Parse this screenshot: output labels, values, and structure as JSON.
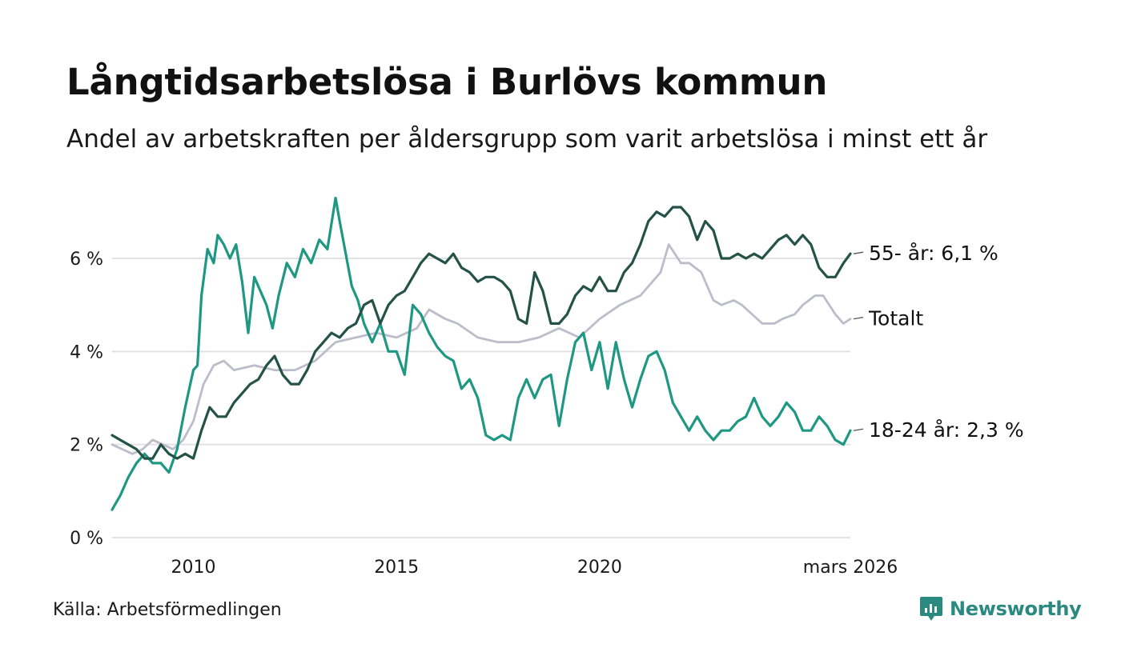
{
  "header": {
    "title": "Långtidsarbetslösa i Burlövs kommun",
    "subtitle": "Andel av arbetskraften per åldersgrupp som varit arbetslösa i minst ett år"
  },
  "footer": {
    "source": "Källa: Arbetsförmedlingen",
    "brand": "Newsworthy"
  },
  "chart_data": {
    "type": "line",
    "title": "Långtidsarbetslösa i Burlövs kommun",
    "ylabel": "",
    "xlabel": "",
    "ylim": [
      0,
      7.5
    ],
    "xlim": [
      2008.0,
      2026.17
    ],
    "grid": true,
    "y_ticks": [
      {
        "value": 0,
        "label": "0 %"
      },
      {
        "value": 2,
        "label": "2 %"
      },
      {
        "value": 4,
        "label": "4 %"
      },
      {
        "value": 6,
        "label": "6 %"
      }
    ],
    "x_ticks": [
      {
        "value": 2010,
        "label": "2010"
      },
      {
        "value": 2015,
        "label": "2015"
      },
      {
        "value": 2020,
        "label": "2020"
      },
      {
        "value": 2026.17,
        "label": "mars 2026"
      }
    ],
    "series": [
      {
        "name": "Totalt",
        "end_label": "Totalt",
        "color": "#bdbccb",
        "width": 2.8,
        "x": [
          2008.0,
          2008.25,
          2008.5,
          2008.75,
          2009.0,
          2009.25,
          2009.5,
          2009.75,
          2010.0,
          2010.25,
          2010.5,
          2010.75,
          2011.0,
          2011.5,
          2012.0,
          2012.5,
          2013.0,
          2013.5,
          2014.0,
          2014.5,
          2015.0,
          2015.5,
          2015.8,
          2016.2,
          2016.5,
          2017.0,
          2017.5,
          2018.0,
          2018.5,
          2019.0,
          2019.5,
          2020.0,
          2020.5,
          2021.0,
          2021.3,
          2021.5,
          2021.7,
          2022.0,
          2022.2,
          2022.5,
          2022.8,
          2023.0,
          2023.3,
          2023.5,
          2024.0,
          2024.3,
          2024.5,
          2024.8,
          2025.0,
          2025.3,
          2025.5,
          2025.8,
          2026.0,
          2026.17
        ],
        "values": [
          2.0,
          1.9,
          1.8,
          1.9,
          2.1,
          2.0,
          1.9,
          2.1,
          2.5,
          3.3,
          3.7,
          3.8,
          3.6,
          3.7,
          3.6,
          3.6,
          3.8,
          4.2,
          4.3,
          4.4,
          4.3,
          4.5,
          4.9,
          4.7,
          4.6,
          4.3,
          4.2,
          4.2,
          4.3,
          4.5,
          4.3,
          4.7,
          5.0,
          5.2,
          5.5,
          5.7,
          6.3,
          5.9,
          5.9,
          5.7,
          5.1,
          5.0,
          5.1,
          5.0,
          4.6,
          4.6,
          4.7,
          4.8,
          5.0,
          5.2,
          5.2,
          4.8,
          4.6,
          4.7
        ],
        "end_value": 4.7
      },
      {
        "name": "18-24 år",
        "end_label": "18-24 år: 2,3 %",
        "color": "#1e9882",
        "width": 3.2,
        "x": [
          2008.0,
          2008.2,
          2008.4,
          2008.6,
          2008.8,
          2009.0,
          2009.2,
          2009.4,
          2009.6,
          2009.8,
          2010.0,
          2010.1,
          2010.2,
          2010.35,
          2010.5,
          2010.6,
          2010.75,
          2010.9,
          2011.05,
          2011.2,
          2011.35,
          2011.5,
          2011.65,
          2011.8,
          2011.95,
          2012.1,
          2012.3,
          2012.5,
          2012.7,
          2012.9,
          2013.1,
          2013.3,
          2013.5,
          2013.6,
          2013.75,
          2013.9,
          2014.05,
          2014.2,
          2014.4,
          2014.6,
          2014.8,
          2015.0,
          2015.2,
          2015.4,
          2015.6,
          2015.8,
          2016.0,
          2016.2,
          2016.4,
          2016.6,
          2016.8,
          2017.0,
          2017.2,
          2017.4,
          2017.6,
          2017.8,
          2018.0,
          2018.2,
          2018.4,
          2018.6,
          2018.8,
          2019.0,
          2019.2,
          2019.4,
          2019.6,
          2019.8,
          2020.0,
          2020.2,
          2020.4,
          2020.6,
          2020.8,
          2021.0,
          2021.2,
          2021.4,
          2021.6,
          2021.8,
          2022.0,
          2022.2,
          2022.4,
          2022.6,
          2022.8,
          2023.0,
          2023.2,
          2023.4,
          2023.6,
          2023.8,
          2024.0,
          2024.2,
          2024.4,
          2024.6,
          2024.8,
          2025.0,
          2025.2,
          2025.4,
          2025.6,
          2025.8,
          2026.0,
          2026.17
        ],
        "values": [
          0.6,
          0.9,
          1.3,
          1.6,
          1.8,
          1.6,
          1.6,
          1.4,
          1.9,
          2.8,
          3.6,
          3.7,
          5.2,
          6.2,
          5.9,
          6.5,
          6.3,
          6.0,
          6.3,
          5.5,
          4.4,
          5.6,
          5.3,
          5.0,
          4.5,
          5.2,
          5.9,
          5.6,
          6.2,
          5.9,
          6.4,
          6.2,
          7.3,
          6.8,
          6.1,
          5.4,
          5.1,
          4.6,
          4.2,
          4.6,
          4.0,
          4.0,
          3.5,
          5.0,
          4.8,
          4.4,
          4.1,
          3.9,
          3.8,
          3.2,
          3.4,
          3.0,
          2.2,
          2.1,
          2.2,
          2.1,
          3.0,
          3.4,
          3.0,
          3.4,
          3.5,
          2.4,
          3.4,
          4.2,
          4.4,
          3.6,
          4.2,
          3.2,
          4.2,
          3.4,
          2.8,
          3.4,
          3.9,
          4.0,
          3.6,
          2.9,
          2.6,
          2.3,
          2.6,
          2.3,
          2.1,
          2.3,
          2.3,
          2.5,
          2.6,
          3.0,
          2.6,
          2.4,
          2.6,
          2.9,
          2.7,
          2.3,
          2.3,
          2.6,
          2.4,
          2.1,
          2.0,
          2.3
        ],
        "end_value": 2.3
      },
      {
        "name": "55- år",
        "end_label": "55- år: 6,1 %",
        "color": "#245245",
        "width": 3.2,
        "x": [
          2008.0,
          2008.2,
          2008.4,
          2008.6,
          2008.8,
          2009.0,
          2009.2,
          2009.4,
          2009.6,
          2009.8,
          2010.0,
          2010.2,
          2010.4,
          2010.6,
          2010.8,
          2011.0,
          2011.2,
          2011.4,
          2011.6,
          2011.8,
          2012.0,
          2012.2,
          2012.4,
          2012.6,
          2012.8,
          2013.0,
          2013.2,
          2013.4,
          2013.6,
          2013.8,
          2014.0,
          2014.2,
          2014.4,
          2014.6,
          2014.8,
          2015.0,
          2015.2,
          2015.4,
          2015.6,
          2015.8,
          2016.0,
          2016.2,
          2016.4,
          2016.6,
          2016.8,
          2017.0,
          2017.2,
          2017.4,
          2017.6,
          2017.8,
          2018.0,
          2018.2,
          2018.4,
          2018.6,
          2018.8,
          2019.0,
          2019.2,
          2019.4,
          2019.6,
          2019.8,
          2020.0,
          2020.2,
          2020.4,
          2020.6,
          2020.8,
          2021.0,
          2021.2,
          2021.4,
          2021.6,
          2021.8,
          2022.0,
          2022.2,
          2022.4,
          2022.6,
          2022.8,
          2023.0,
          2023.2,
          2023.4,
          2023.6,
          2023.8,
          2024.0,
          2024.2,
          2024.4,
          2024.6,
          2024.8,
          2025.0,
          2025.2,
          2025.4,
          2025.6,
          2025.8,
          2026.0,
          2026.17
        ],
        "values": [
          2.2,
          2.1,
          2.0,
          1.9,
          1.7,
          1.7,
          2.0,
          1.8,
          1.7,
          1.8,
          1.7,
          2.3,
          2.8,
          2.6,
          2.6,
          2.9,
          3.1,
          3.3,
          3.4,
          3.7,
          3.9,
          3.5,
          3.3,
          3.3,
          3.6,
          4.0,
          4.2,
          4.4,
          4.3,
          4.5,
          4.6,
          5.0,
          5.1,
          4.6,
          5.0,
          5.2,
          5.3,
          5.6,
          5.9,
          6.1,
          6.0,
          5.9,
          6.1,
          5.8,
          5.7,
          5.5,
          5.6,
          5.6,
          5.5,
          5.3,
          4.7,
          4.6,
          5.7,
          5.3,
          4.6,
          4.6,
          4.8,
          5.2,
          5.4,
          5.3,
          5.6,
          5.3,
          5.3,
          5.7,
          5.9,
          6.3,
          6.8,
          7.0,
          6.9,
          7.1,
          7.1,
          6.9,
          6.4,
          6.8,
          6.6,
          6.0,
          6.0,
          6.1,
          6.0,
          6.1,
          6.0,
          6.2,
          6.4,
          6.5,
          6.3,
          6.5,
          6.3,
          5.8,
          5.6,
          5.6,
          5.9,
          6.1
        ],
        "end_value": 6.1
      }
    ]
  }
}
